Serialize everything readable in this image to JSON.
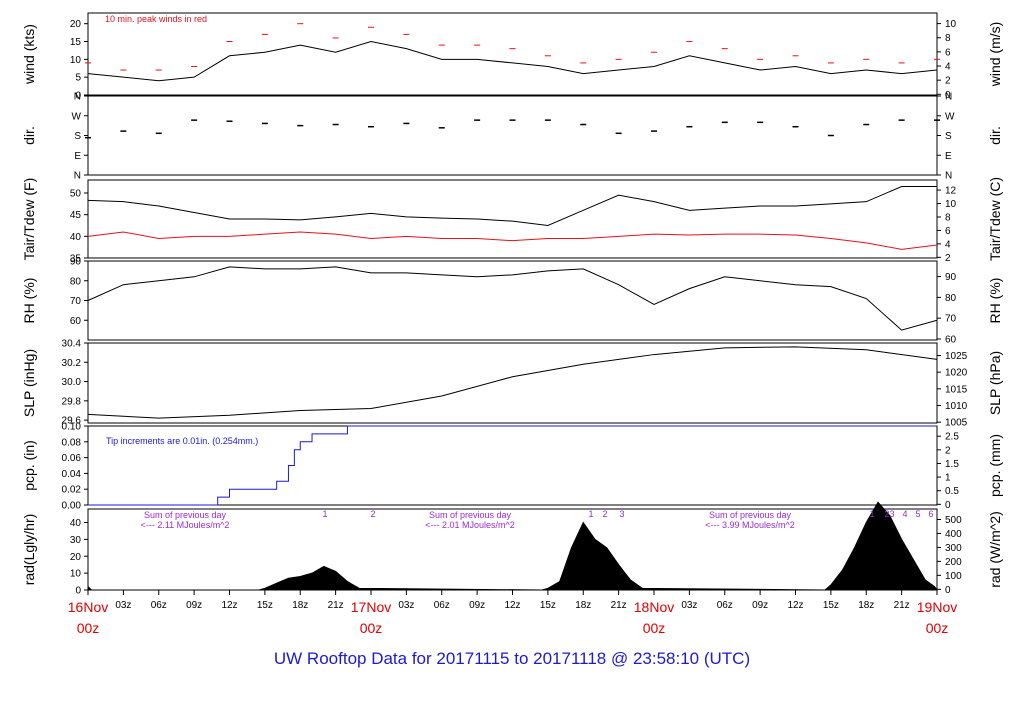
{
  "title": "UW Rooftop Data for 20171115  to  20171118 @ 23:58:10  (UTC)",
  "colors": {
    "black": "#000000",
    "red": "#e8101c",
    "blue": "#1a1ad8",
    "purple": "#9a2bd8",
    "date": "#e00000"
  },
  "time_axis": {
    "hour_ticks": [
      "03z",
      "06z",
      "09z",
      "12z",
      "15z",
      "18z",
      "21z",
      "03z",
      "06z",
      "09z",
      "12z",
      "15z",
      "18z",
      "21z",
      "03z",
      "06z",
      "09z",
      "12z",
      "15z",
      "18z",
      "21z"
    ],
    "day_labels": [
      {
        "date": "16Nov",
        "hour": "00z"
      },
      {
        "date": "17Nov",
        "hour": "00z"
      },
      {
        "date": "18Nov",
        "hour": "00z"
      },
      {
        "date": "19Nov",
        "hour": "00z"
      }
    ]
  },
  "chart_data": [
    {
      "type": "line",
      "id": "wind",
      "ylabel": "wind (kts)",
      "y2label": "wind (m/s)",
      "ylim": [
        0,
        23
      ],
      "yticks": [
        "0",
        "5",
        "10",
        "15",
        "20"
      ],
      "y2ticks": [
        "0",
        "2",
        "4",
        "6",
        "8",
        "10"
      ],
      "annotation": "10 min. peak winds in red",
      "series": [
        {
          "color": "#000000",
          "style": "line",
          "x": [
            0,
            3,
            6,
            9,
            12,
            15,
            18,
            21,
            24,
            27,
            30,
            33,
            36,
            39,
            42,
            45,
            48,
            51,
            54,
            57,
            60,
            63,
            66,
            69,
            72
          ],
          "y": [
            6,
            5,
            4,
            5,
            11,
            12,
            14,
            12,
            15,
            13,
            10,
            10,
            9,
            8,
            6,
            7,
            8,
            11,
            9,
            7,
            8,
            6,
            7,
            6,
            7
          ]
        },
        {
          "color": "#e8101c",
          "style": "dashes",
          "x": [
            0,
            3,
            6,
            9,
            12,
            15,
            18,
            21,
            24,
            27,
            30,
            33,
            36,
            39,
            42,
            45,
            48,
            51,
            54,
            57,
            60,
            63,
            66,
            69,
            72
          ],
          "y": [
            9,
            7,
            7,
            8,
            15,
            17,
            20,
            16,
            19,
            17,
            14,
            14,
            13,
            11,
            9,
            10,
            12,
            15,
            13,
            10,
            11,
            9,
            10,
            9,
            10
          ]
        }
      ]
    },
    {
      "type": "scatter",
      "id": "dir",
      "ylabel": "dir.",
      "y2label": "dir.",
      "yticks": [
        "N",
        "W",
        "S",
        "E",
        "N"
      ],
      "y2ticks": [
        "N",
        "W",
        "S",
        "E",
        "N"
      ],
      "ylim": [
        0,
        360
      ],
      "series": [
        {
          "color": "#000000",
          "x": [
            0,
            3,
            6,
            9,
            12,
            15,
            18,
            21,
            24,
            27,
            30,
            33,
            36,
            39,
            42,
            45,
            48,
            51,
            54,
            57,
            60,
            63,
            66,
            69,
            72
          ],
          "y": [
            170,
            200,
            190,
            250,
            245,
            235,
            225,
            230,
            220,
            235,
            215,
            250,
            250,
            250,
            230,
            190,
            200,
            220,
            240,
            240,
            220,
            180,
            230,
            250,
            250
          ]
        }
      ]
    },
    {
      "type": "line",
      "id": "temp",
      "ylabel": "Tair/Tdew (F)",
      "y2label": "Tair/Tdew (C)",
      "ylim": [
        35,
        53
      ],
      "yticks": [
        "35",
        "40",
        "45",
        "50"
      ],
      "y2ticks": [
        "2",
        "4",
        "6",
        "8",
        "10",
        "12"
      ],
      "series": [
        {
          "color": "#000000",
          "x": [
            0,
            3,
            6,
            9,
            12,
            15,
            18,
            21,
            24,
            27,
            30,
            33,
            36,
            39,
            42,
            45,
            48,
            51,
            54,
            57,
            60,
            63,
            66,
            69,
            72
          ],
          "y": [
            48.3,
            48,
            47,
            45.5,
            44,
            44,
            43.8,
            44.5,
            45.3,
            44.5,
            44.2,
            44,
            43.5,
            42.5,
            46,
            49.5,
            48,
            46,
            46.5,
            47,
            47,
            47.5,
            48,
            51.5,
            51.5
          ]
        },
        {
          "color": "#e8101c",
          "x": [
            0,
            3,
            6,
            9,
            12,
            15,
            18,
            21,
            24,
            27,
            30,
            33,
            36,
            39,
            42,
            45,
            48,
            51,
            54,
            57,
            60,
            63,
            66,
            69,
            72
          ],
          "y": [
            40,
            41,
            39.5,
            40,
            40,
            40.5,
            41,
            40.5,
            39.5,
            40,
            39.5,
            39.5,
            39,
            39.5,
            39.5,
            40,
            40.5,
            40.3,
            40.5,
            40.5,
            40.3,
            39.5,
            38.5,
            37,
            38
          ]
        }
      ]
    },
    {
      "type": "line",
      "id": "rh",
      "ylabel": "RH (%)",
      "y2label": "RH (%)",
      "ylim": [
        50,
        90
      ],
      "yticks": [
        "60",
        "70",
        "80",
        "90"
      ],
      "y2ticks": [
        "60",
        "70",
        "80",
        "90"
      ],
      "series": [
        {
          "color": "#000000",
          "x": [
            0,
            3,
            6,
            9,
            12,
            15,
            18,
            21,
            24,
            27,
            30,
            33,
            36,
            39,
            42,
            45,
            48,
            51,
            54,
            57,
            60,
            63,
            66,
            69,
            72
          ],
          "y": [
            70,
            78,
            80,
            82,
            87,
            86,
            86,
            87,
            84,
            84,
            83,
            82,
            83,
            85,
            86,
            78,
            68,
            76,
            82,
            80,
            78,
            77,
            71,
            55,
            60
          ]
        }
      ]
    },
    {
      "type": "line",
      "id": "slp",
      "ylabel": "SLP (inHg)",
      "y2label": "SLP (hPa)",
      "ylim": [
        29.57,
        30.4
      ],
      "yticks": [
        "29.6",
        "29.8",
        "30.0",
        "30.2",
        "30.4"
      ],
      "y2ticks": [
        "1005",
        "1010",
        "1015",
        "1020",
        "1025"
      ],
      "series": [
        {
          "color": "#000000",
          "x": [
            0,
            6,
            12,
            18,
            24,
            30,
            36,
            42,
            48,
            54,
            60,
            66,
            72
          ],
          "y": [
            29.66,
            29.62,
            29.65,
            29.7,
            29.72,
            29.85,
            30.05,
            30.18,
            30.28,
            30.35,
            30.36,
            30.33,
            30.23
          ]
        }
      ]
    },
    {
      "type": "line",
      "id": "pcp",
      "ylabel": "pcp. (in)",
      "y2label": "pcp. (mm)",
      "ylim": [
        0,
        0.1
      ],
      "yticks": [
        "0.00",
        "0.02",
        "0.04",
        "0.06",
        "0.08",
        "0.10"
      ],
      "y2ticks": [
        "0",
        "0.5",
        "1",
        "1.5",
        "2",
        "2.5"
      ],
      "annotation": "Tip increments are 0.01in. (0.254mm.)",
      "series": [
        {
          "color": "#1a1ad8",
          "x": [
            0,
            10.5,
            11,
            12,
            13,
            16,
            17,
            17.5,
            18,
            18.5,
            19,
            20,
            22,
            24,
            72
          ],
          "y": [
            0,
            0,
            0.01,
            0.02,
            0.02,
            0.03,
            0.05,
            0.07,
            0.08,
            0.08,
            0.09,
            0.09,
            0.1,
            0.1,
            0.1
          ]
        }
      ]
    },
    {
      "type": "area",
      "id": "rad",
      "ylabel": "rad(Lgly/hr)",
      "y2label": "rad (W/m^2)",
      "ylim": [
        0,
        48
      ],
      "yticks": [
        "0",
        "10",
        "20",
        "30",
        "40"
      ],
      "y2ticks": [
        "0",
        "100",
        "200",
        "300",
        "400",
        "500"
      ],
      "annotations": [
        {
          "line1": "Sum of previous day",
          "line2": "<--- 2.11 MJoules/m^2"
        },
        {
          "line1": "Sum of previous day",
          "line2": "<--- 2.01 MJoules/m^2"
        },
        {
          "line1": "Sum of previous day",
          "line2": "<--- 3.99 MJoules/m^2"
        }
      ],
      "markers": [
        "1",
        "2",
        "1",
        "2",
        "3",
        "1",
        "2",
        "3",
        "4",
        "5",
        "6"
      ],
      "series": [
        {
          "color": "#000000",
          "x": [
            0,
            0.3,
            14.5,
            15,
            16,
            17,
            18,
            19,
            20,
            21,
            22,
            23,
            38.5,
            39,
            40,
            41,
            42,
            43,
            44,
            45,
            46,
            47,
            62.5,
            63,
            64,
            65,
            66,
            67,
            68,
            69,
            70,
            71,
            71.8,
            72
          ],
          "y": [
            2,
            0,
            0,
            1,
            4,
            7,
            8,
            10,
            14,
            11,
            5,
            1,
            0,
            1,
            5,
            25,
            40,
            30,
            25,
            15,
            6,
            1,
            0,
            3,
            12,
            25,
            40,
            52,
            44,
            30,
            18,
            6,
            2,
            0
          ]
        }
      ]
    }
  ]
}
